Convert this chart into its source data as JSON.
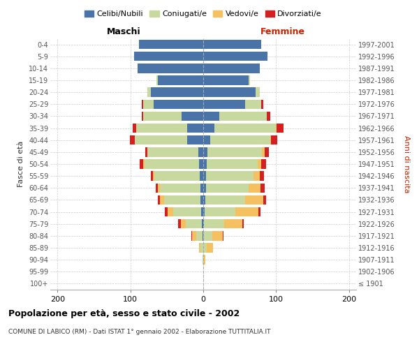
{
  "age_groups": [
    "100+",
    "95-99",
    "90-94",
    "85-89",
    "80-84",
    "75-79",
    "70-74",
    "65-69",
    "60-64",
    "55-59",
    "50-54",
    "45-49",
    "40-44",
    "35-39",
    "30-34",
    "25-29",
    "20-24",
    "15-19",
    "10-14",
    "5-9",
    "0-4"
  ],
  "birth_years": [
    "≤ 1901",
    "1902-1906",
    "1907-1911",
    "1912-1916",
    "1917-1921",
    "1922-1926",
    "1927-1931",
    "1932-1936",
    "1937-1941",
    "1942-1946",
    "1947-1951",
    "1952-1956",
    "1957-1961",
    "1962-1966",
    "1967-1971",
    "1972-1976",
    "1977-1981",
    "1982-1986",
    "1987-1991",
    "1992-1996",
    "1997-2001"
  ],
  "colors": {
    "celibe": "#4a74a8",
    "coniugato": "#c8d9a0",
    "vedovo": "#f5c060",
    "divorziato": "#d42020"
  },
  "maschi": {
    "celibe": [
      0,
      0,
      0,
      0,
      1,
      2,
      3,
      4,
      4,
      5,
      6,
      7,
      22,
      22,
      30,
      68,
      72,
      62,
      90,
      95,
      88
    ],
    "coniugato": [
      0,
      0,
      1,
      4,
      9,
      22,
      38,
      50,
      55,
      62,
      75,
      70,
      72,
      70,
      52,
      14,
      5,
      2,
      0,
      0,
      0
    ],
    "vedovo": [
      0,
      0,
      0,
      2,
      5,
      7,
      8,
      5,
      3,
      2,
      1,
      0,
      0,
      0,
      0,
      0,
      0,
      0,
      0,
      0,
      0
    ],
    "divorziato": [
      0,
      0,
      0,
      0,
      1,
      4,
      4,
      3,
      3,
      3,
      5,
      3,
      7,
      5,
      2,
      2,
      0,
      0,
      0,
      0,
      0
    ]
  },
  "femmine": {
    "nubile": [
      0,
      0,
      0,
      0,
      0,
      1,
      2,
      3,
      4,
      4,
      5,
      6,
      10,
      15,
      22,
      58,
      72,
      62,
      78,
      88,
      80
    ],
    "coniugata": [
      0,
      0,
      1,
      5,
      12,
      28,
      42,
      55,
      58,
      65,
      70,
      75,
      82,
      85,
      65,
      22,
      6,
      2,
      0,
      0,
      0
    ],
    "vedova": [
      0,
      0,
      2,
      8,
      15,
      25,
      32,
      24,
      17,
      9,
      5,
      3,
      1,
      1,
      0,
      0,
      0,
      0,
      0,
      0,
      0
    ],
    "divorziata": [
      0,
      0,
      0,
      0,
      1,
      2,
      3,
      4,
      5,
      5,
      6,
      6,
      9,
      9,
      5,
      2,
      0,
      0,
      0,
      0,
      0
    ]
  },
  "title": "Popolazione per età, sesso e stato civile - 2002",
  "subtitle": "COMUNE DI LABICO (RM) - Dati ISTAT 1° gennaio 2002 - Elaborazione TUTTITALIA.IT",
  "ylabel_left": "Fasce di età",
  "ylabel_right": "Anni di nascita",
  "xlabel_maschi": "Maschi",
  "xlabel_femmine": "Femmine",
  "xlim": 210,
  "background_color": "#ffffff",
  "grid_color": "#cccccc",
  "legend_labels": [
    "Celibi/Nubili",
    "Coniugati/e",
    "Vedovi/e",
    "Divorziati/e"
  ]
}
